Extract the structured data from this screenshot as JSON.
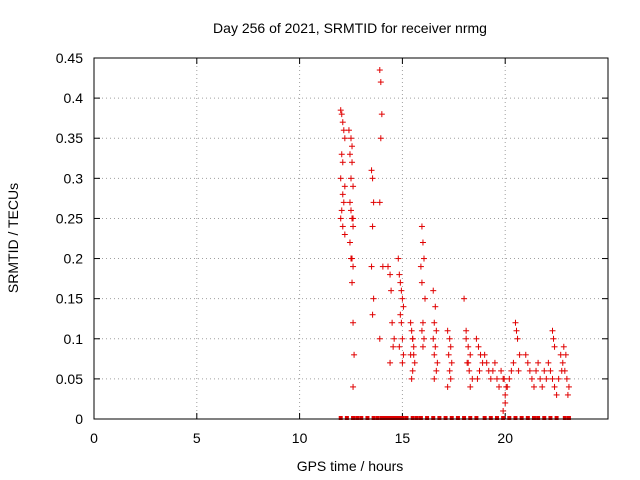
{
  "chart_data": {
    "type": "scatter",
    "title": "Day 256 of 2021, SRMTID for receiver nrmg",
    "xlabel": "GPS time / hours",
    "ylabel": "SRMTID / TECUs",
    "xlim": [
      0,
      25
    ],
    "ylim": [
      0,
      0.45
    ],
    "x_ticks": [
      0,
      5,
      10,
      15,
      20
    ],
    "x_tick_labels": [
      "0",
      "5",
      "10",
      "15",
      "20"
    ],
    "y_ticks": [
      0,
      0.05,
      0.1,
      0.15,
      0.2,
      0.25,
      0.3,
      0.35,
      0.4,
      0.45
    ],
    "y_tick_labels": [
      "0",
      "0.05",
      "0.1",
      "0.15",
      "0.2",
      "0.25",
      "0.3",
      "0.35",
      "0.4",
      "0.45"
    ],
    "grid": true,
    "marker_color": "#e00000",
    "series": [
      {
        "name": "SRMTID",
        "x": [
          12.0,
          12.05,
          12.1,
          12.15,
          12.2,
          12.05,
          12.1,
          12.0,
          12.2,
          12.1,
          12.15,
          12.05,
          12.0,
          12.1,
          12.2,
          12.4,
          12.5,
          12.45,
          12.55,
          12.5,
          12.6,
          12.45,
          12.5,
          12.55,
          12.6,
          12.45,
          12.5,
          12.6,
          12.55,
          12.6,
          12.65,
          12.6,
          12.55,
          12.6,
          12.55,
          13.5,
          13.55,
          13.6,
          13.55,
          13.5,
          13.6,
          13.55,
          13.9,
          13.95,
          14.0,
          13.95,
          13.9,
          14.05,
          13.9,
          14.3,
          14.4,
          14.45,
          14.5,
          14.55,
          14.4,
          14.6,
          14.8,
          14.85,
          14.9,
          14.95,
          15.0,
          15.05,
          14.9,
          14.95,
          15.0,
          14.85,
          15.05,
          15.0,
          15.4,
          15.45,
          15.5,
          15.55,
          15.4,
          15.6,
          15.5,
          15.45,
          15.55,
          15.5,
          15.95,
          16.0,
          16.05,
          15.9,
          15.95,
          16.1,
          16.0,
          15.95,
          16.05,
          16.0,
          16.5,
          16.6,
          16.55,
          16.65,
          16.5,
          16.6,
          16.55,
          16.7,
          16.65,
          16.55,
          17.2,
          17.3,
          17.35,
          17.25,
          17.4,
          17.3,
          17.35,
          17.2,
          18.0,
          18.1,
          18.2,
          18.3,
          18.15,
          18.25,
          18.4,
          18.3,
          18.1,
          18.2,
          18.6,
          18.7,
          18.8,
          18.9,
          18.75,
          18.65,
          19.0,
          19.1,
          19.2,
          19.3,
          19.4,
          19.5,
          19.6,
          19.7,
          19.8,
          19.9,
          20.0,
          20.1,
          20.2,
          20.3,
          20.4,
          20.5,
          20.6,
          20.7,
          20.55,
          20.65,
          20.0,
          19.9,
          20.05,
          19.95,
          21.0,
          21.1,
          21.2,
          21.3,
          21.4,
          21.5,
          21.6,
          21.7,
          21.8,
          21.9,
          22.0,
          22.1,
          22.2,
          22.3,
          22.4,
          22.5,
          22.6,
          22.3,
          22.35,
          22.4,
          22.7,
          22.8,
          22.9,
          23.0,
          23.1,
          22.85,
          22.95,
          23.05,
          22.75
        ],
        "y": [
          0.385,
          0.38,
          0.37,
          0.36,
          0.35,
          0.33,
          0.32,
          0.3,
          0.29,
          0.28,
          0.27,
          0.26,
          0.25,
          0.24,
          0.23,
          0.36,
          0.35,
          0.33,
          0.32,
          0.3,
          0.29,
          0.27,
          0.26,
          0.25,
          0.24,
          0.22,
          0.2,
          0.19,
          0.17,
          0.12,
          0.08,
          0.04,
          0.2,
          0.25,
          0.34,
          0.31,
          0.3,
          0.27,
          0.24,
          0.19,
          0.15,
          0.13,
          0.435,
          0.42,
          0.38,
          0.35,
          0.27,
          0.19,
          0.1,
          0.19,
          0.18,
          0.16,
          0.12,
          0.09,
          0.07,
          0.1,
          0.2,
          0.18,
          0.17,
          0.16,
          0.15,
          0.14,
          0.13,
          0.12,
          0.1,
          0.09,
          0.08,
          0.07,
          0.12,
          0.11,
          0.1,
          0.09,
          0.08,
          0.07,
          0.06,
          0.05,
          0.08,
          0.1,
          0.24,
          0.22,
          0.2,
          0.19,
          0.17,
          0.15,
          0.12,
          0.11,
          0.1,
          0.09,
          0.16,
          0.14,
          0.12,
          0.11,
          0.1,
          0.09,
          0.08,
          0.07,
          0.06,
          0.05,
          0.11,
          0.1,
          0.09,
          0.08,
          0.07,
          0.06,
          0.05,
          0.04,
          0.15,
          0.1,
          0.09,
          0.08,
          0.07,
          0.06,
          0.05,
          0.04,
          0.11,
          0.07,
          0.1,
          0.09,
          0.08,
          0.07,
          0.06,
          0.05,
          0.08,
          0.07,
          0.06,
          0.05,
          0.06,
          0.07,
          0.05,
          0.04,
          0.06,
          0.05,
          0.03,
          0.04,
          0.05,
          0.06,
          0.07,
          0.12,
          0.1,
          0.08,
          0.11,
          0.06,
          0.02,
          0.01,
          0.04,
          0.05,
          0.08,
          0.07,
          0.06,
          0.05,
          0.04,
          0.06,
          0.07,
          0.05,
          0.04,
          0.06,
          0.05,
          0.07,
          0.06,
          0.05,
          0.04,
          0.03,
          0.05,
          0.11,
          0.1,
          0.09,
          0.08,
          0.07,
          0.06,
          0.05,
          0.04,
          0.09,
          0.08,
          0.03,
          0.06
        ],
        "zero_x": [
          12.0,
          12.3,
          12.6,
          12.8,
          13.0,
          13.3,
          13.6,
          13.8,
          14.0,
          14.1,
          14.2,
          14.3,
          14.4,
          14.5,
          14.6,
          14.7,
          14.8,
          14.9,
          15.0,
          15.2,
          15.5,
          15.7,
          15.9,
          16.2,
          16.5,
          16.8,
          17.1,
          17.4,
          17.7,
          18.0,
          18.3,
          18.6,
          19.0,
          19.3,
          19.6,
          19.9,
          20.2,
          20.5,
          20.8,
          21.1,
          21.4,
          21.6,
          21.9,
          22.2,
          22.5,
          22.9,
          23.1
        ]
      }
    ]
  }
}
